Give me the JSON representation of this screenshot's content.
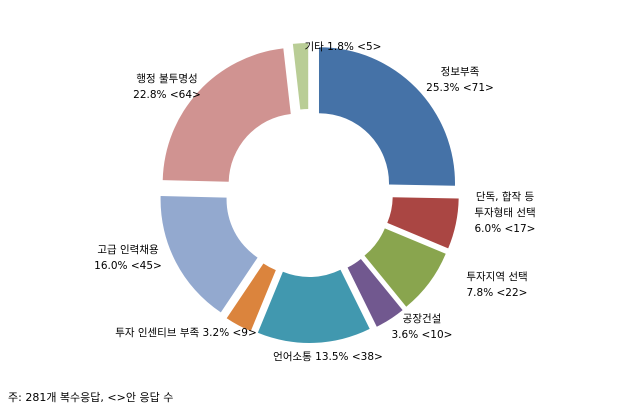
{
  "chart_data": {
    "type": "pie",
    "donut": true,
    "exploded": true,
    "legend": "none",
    "slices": [
      {
        "label_lines": [
          "정보부족"
        ],
        "value_text": "25.3% <71>",
        "percent": 25.3,
        "count": 71,
        "color": "#4572A7"
      },
      {
        "label_lines": [
          "단독, 합작 등",
          "투자형태 선택"
        ],
        "value_text": "6.0% <17>",
        "percent": 6.0,
        "count": 17,
        "color": "#AA4643"
      },
      {
        "label_lines": [
          "투자지역 선택"
        ],
        "value_text": "7.8% <22>",
        "percent": 7.8,
        "count": 22,
        "color": "#89A54E"
      },
      {
        "label_lines": [
          "공장건설"
        ],
        "value_text": "3.6% <10>",
        "percent": 3.6,
        "count": 10,
        "color": "#71588F"
      },
      {
        "label_lines": [],
        "value_text": "언어소통 13.5% <38>",
        "percent": 13.5,
        "count": 38,
        "color": "#4198AF"
      },
      {
        "label_lines": [],
        "value_text": "투자 인센티브 부족 3.2% <9>",
        "percent": 3.2,
        "count": 9,
        "color": "#DB843D"
      },
      {
        "label_lines": [
          "고급 인력채용"
        ],
        "value_text": "16.0% <45>",
        "percent": 16.0,
        "count": 45,
        "color": "#93A9CF"
      },
      {
        "label_lines": [
          "행정 불투명성"
        ],
        "value_text": "22.8% <64>",
        "percent": 22.8,
        "count": 64,
        "color": "#D09391"
      },
      {
        "label_lines": [],
        "value_text": "기타 1.8% <5>",
        "percent": 1.8,
        "count": 5,
        "color": "#B9CD96"
      }
    ]
  },
  "footnote": "주: 281개 복수응답, <>안 응답 수"
}
